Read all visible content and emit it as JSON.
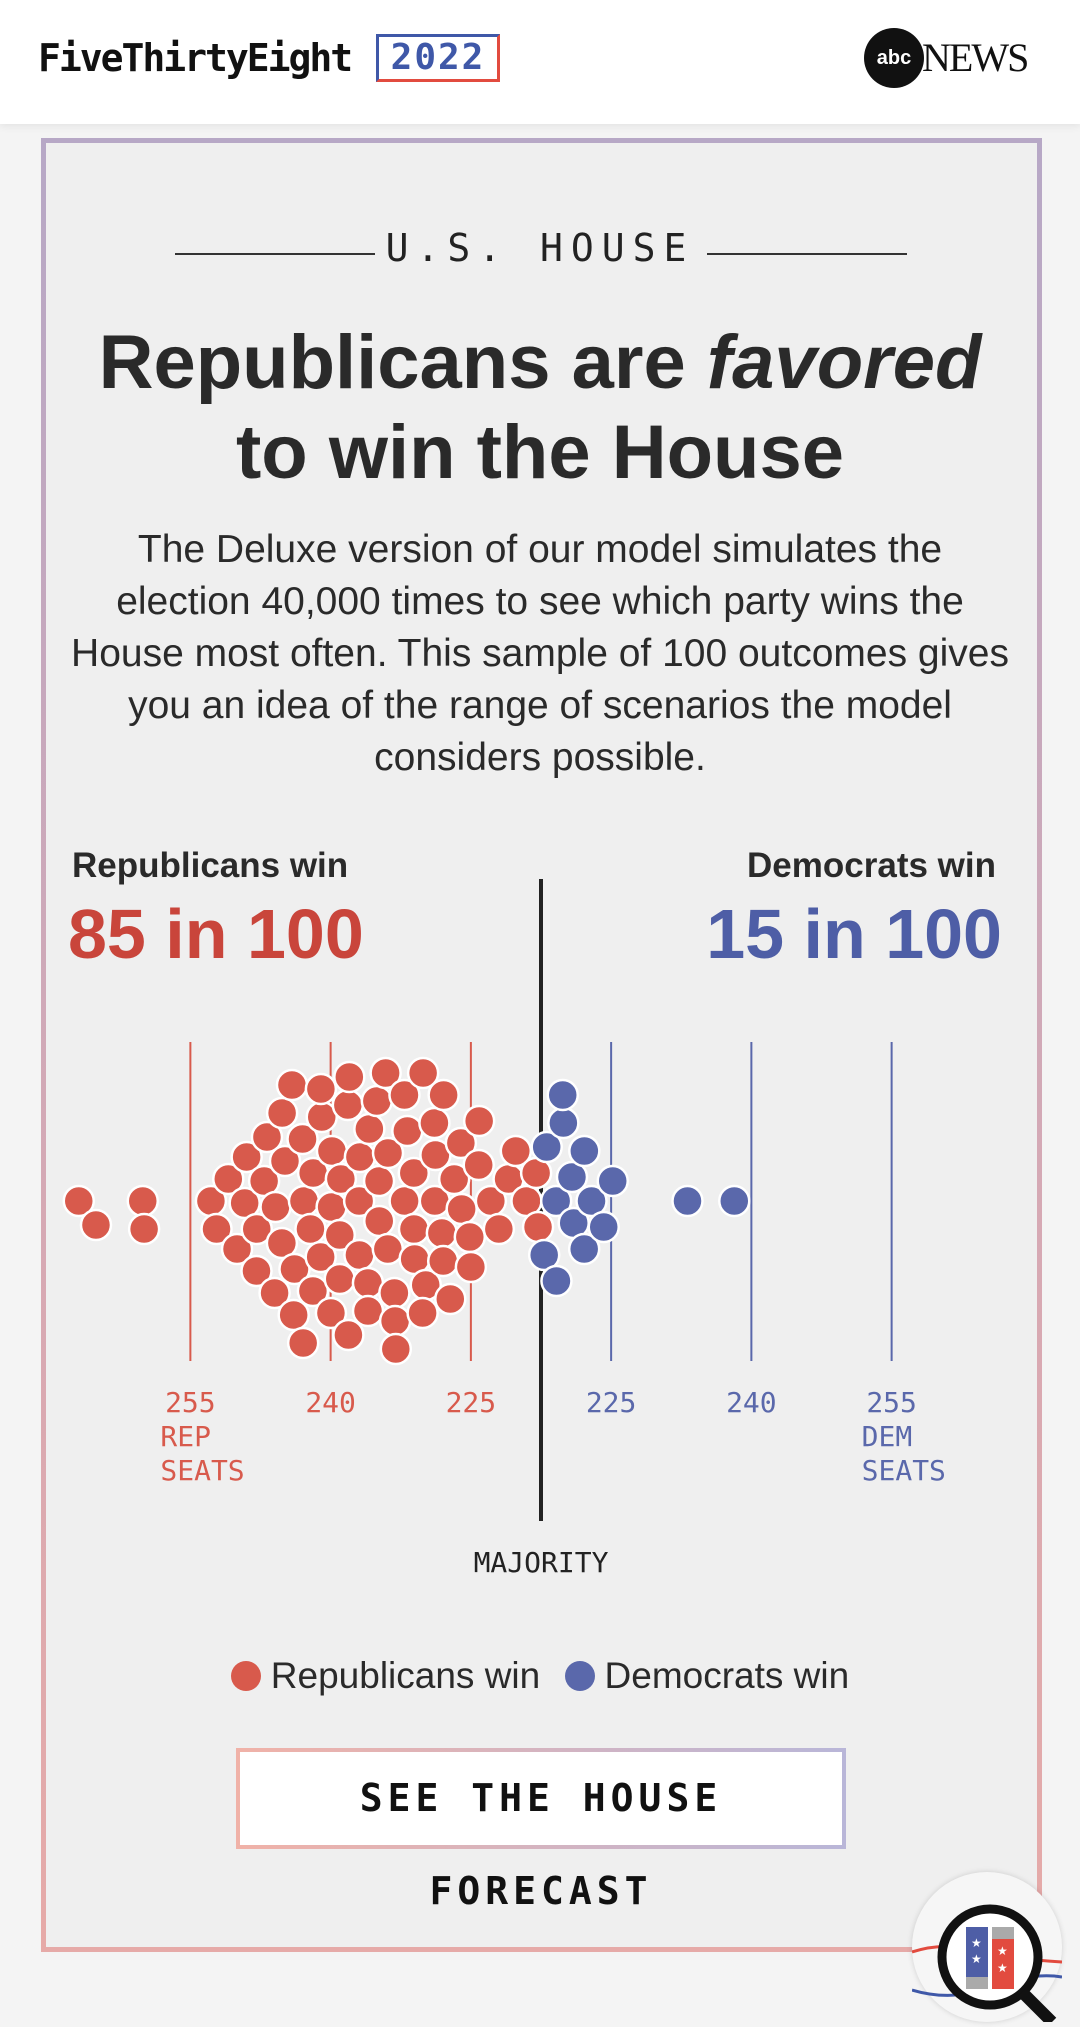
{
  "header": {
    "brand": "FiveThirtyEight",
    "year": "2022",
    "partner_logo": "abc",
    "partner_name": "NEWS"
  },
  "card": {
    "kicker": "U.S. HOUSE",
    "headline_part1": "Republicans are ",
    "headline_em": "favored",
    "headline_part2": "to win the House",
    "description": "The Deluxe version of our model simulates the election 40,000 times to see which party wins the House most often. This sample of 100 outcomes gives you an idea of the range of scenarios the model considers possible.",
    "rep": {
      "label": "Republicans win",
      "odds": "85 in 100"
    },
    "dem": {
      "label": "Democrats win",
      "odds": "15 in 100"
    },
    "legend": {
      "rep": "Republicans win",
      "dem": "Democrats win"
    },
    "cta": "SEE THE HOUSE FORECAST"
  },
  "colors": {
    "rep": "#d85a4c",
    "dem": "#5a68ab",
    "majority": "#222222"
  },
  "chart_data": {
    "type": "scatter",
    "subtype": "beeswarm",
    "x_unit": "Republican seats",
    "majority_label": "MAJORITY",
    "majority_seats": 218,
    "ticks": [
      {
        "party": "rep",
        "seats": 255,
        "label": "255",
        "sub": [
          "REP",
          "SEATS"
        ]
      },
      {
        "party": "rep",
        "seats": 240,
        "label": "240",
        "sub": []
      },
      {
        "party": "rep",
        "seats": 225,
        "label": "225",
        "sub": []
      },
      {
        "party": "dem",
        "seats": 225,
        "label": "225",
        "sub": []
      },
      {
        "party": "dem",
        "seats": 240,
        "label": "240",
        "sub": []
      },
      {
        "party": "dem",
        "seats": 255,
        "label": "255",
        "sub": [
          "DEM",
          "SEATS"
        ]
      }
    ],
    "total_seats": 435,
    "outcomes_rep_seats": [
      267,
      265,
      260,
      260,
      253,
      252,
      251,
      250,
      249,
      249,
      248,
      248,
      247,
      247,
      246,
      246,
      245,
      245,
      245,
      244,
      244,
      244,
      243,
      243,
      243,
      242,
      242,
      242,
      241,
      241,
      241,
      240,
      240,
      240,
      239,
      239,
      239,
      238,
      238,
      238,
      237,
      237,
      237,
      236,
      236,
      236,
      235,
      235,
      235,
      234,
      234,
      234,
      233,
      233,
      233,
      232,
      232,
      232,
      231,
      231,
      231,
      230,
      230,
      230,
      229,
      229,
      229,
      228,
      228,
      228,
      227,
      227,
      226,
      226,
      225,
      225,
      224,
      224,
      223,
      222,
      221,
      220,
      219,
      218,
      218,
      217,
      217,
      216,
      216,
      215,
      215,
      214,
      214,
      213,
      213,
      212,
      211,
      210,
      202,
      197
    ]
  }
}
